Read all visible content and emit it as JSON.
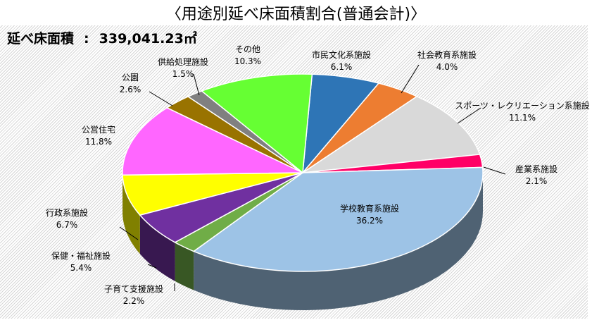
{
  "chart_data": {
    "type": "pie",
    "style": "3d-pie",
    "title": "〈用途別延べ床面積割合(普通会計)〉",
    "total_label": "延べ床面積",
    "total_separator": ":",
    "total_value": "339,041.23㎡",
    "slices": [
      {
        "label": "市民文化系施設",
        "value": 6.1,
        "text": "6.1%",
        "color": "#2e75b6"
      },
      {
        "label": "社会教育系施設",
        "value": 4.0,
        "text": "4.0%",
        "color": "#ed7d31"
      },
      {
        "label": "スポーツ・レクリエーション系施設",
        "value": 11.1,
        "text": "11.1%",
        "color": "#d9d9d9"
      },
      {
        "label": "産業系施設",
        "value": 2.1,
        "text": "2.1%",
        "color": "#ff0066"
      },
      {
        "label": "学校教育系施設",
        "value": 36.2,
        "text": "36.2%",
        "color": "#9dc3e6"
      },
      {
        "label": "子育て支援施設",
        "value": 2.2,
        "text": "2.2%",
        "color": "#70ad47"
      },
      {
        "label": "保健・福祉施設",
        "value": 5.4,
        "text": "5.4%",
        "color": "#7030a0"
      },
      {
        "label": "行政系施設",
        "value": 6.7,
        "text": "6.7%",
        "color": "#ffff00"
      },
      {
        "label": "公営住宅",
        "value": 11.8,
        "text": "11.8%",
        "color": "#ff66ff"
      },
      {
        "label": "公園",
        "value": 2.6,
        "text": "2.6%",
        "color": "#997300"
      },
      {
        "label": "供給処理施設",
        "value": 1.5,
        "text": "1.5%",
        "color": "#808080"
      },
      {
        "label": "その他",
        "value": 10.3,
        "text": "10.3%",
        "color": "#66ff33"
      }
    ]
  }
}
